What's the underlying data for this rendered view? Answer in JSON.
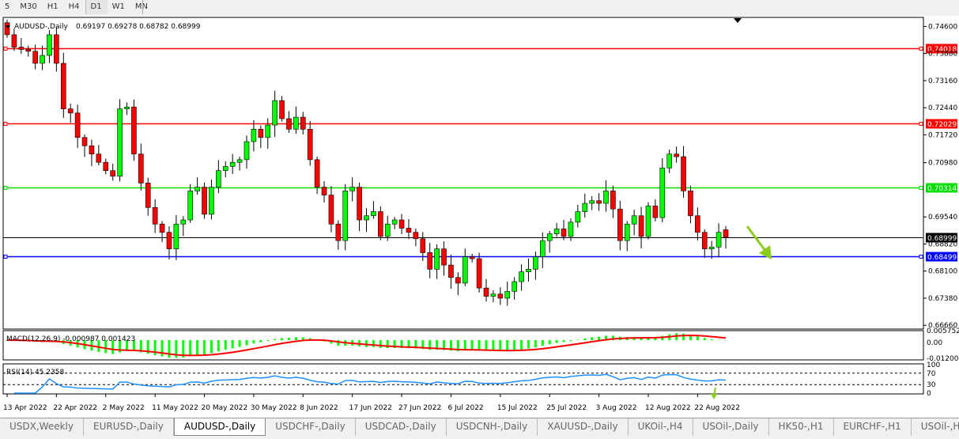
{
  "timeframes": [
    "5",
    "M30",
    "H1",
    "H4",
    "D1",
    "W1",
    "MN"
  ],
  "active_timeframe": "D1",
  "chart": {
    "symbol_label": "AUDUSD-,Daily",
    "ohlc": "0.69197 0.69278 0.68782 0.68999",
    "open": 0.69197,
    "high": 0.69278,
    "low": 0.68782,
    "close": 0.68999
  },
  "price_axis": {
    "min": 0.6656,
    "max": 0.7484,
    "ticks": [
      "0.74600",
      "0.73880",
      "0.73160",
      "0.72440",
      "0.71720",
      "0.70980",
      "0.69540",
      "0.68820",
      "0.68100",
      "0.67380",
      "0.66660"
    ]
  },
  "levels": [
    {
      "price": 0.74018,
      "label": "0.74018",
      "color": "#ff0000"
    },
    {
      "price": 0.72029,
      "label": "0.72029",
      "color": "#ff0000"
    },
    {
      "price": 0.70314,
      "label": "0.70314",
      "color": "#00e000"
    },
    {
      "price": 0.68999,
      "label": "0.68999",
      "color": "#000000"
    },
    {
      "price": 0.68499,
      "label": "0.68499",
      "color": "#0000ff"
    }
  ],
  "colors": {
    "bull": "#00ff00",
    "bear": "#ff0000",
    "macd_hist": "#00ff00",
    "macd_signal": "#ff0000",
    "rsi": "#1e90ff",
    "arrow": "#8ccc1a"
  },
  "closes": [
    0.7438,
    0.7405,
    0.7399,
    0.7394,
    0.7362,
    0.7383,
    0.7438,
    0.7362,
    0.7241,
    0.723,
    0.7165,
    0.7143,
    0.7121,
    0.7099,
    0.7077,
    0.7062,
    0.7241,
    0.7246,
    0.7121,
    0.7044,
    0.6979,
    0.6935,
    0.6913,
    0.6869,
    0.6935,
    0.6946,
    0.7023,
    0.7033,
    0.6961,
    0.7033,
    0.7077,
    0.7088,
    0.7099,
    0.7106,
    0.7154,
    0.7187,
    0.7165,
    0.7198,
    0.7263,
    0.7215,
    0.7187,
    0.7219,
    0.7187,
    0.7106,
    0.7033,
    0.7012,
    0.6935,
    0.6891,
    0.7023,
    0.7033,
    0.6946,
    0.6957,
    0.6968,
    0.6902,
    0.6935,
    0.6946,
    0.6924,
    0.6913,
    0.6896,
    0.6859,
    0.6815,
    0.6869,
    0.6826,
    0.6793,
    0.6778,
    0.6848,
    0.6843,
    0.6765,
    0.6743,
    0.6749,
    0.6738,
    0.6756,
    0.6782,
    0.6808,
    0.6815,
    0.6848,
    0.6891,
    0.6909,
    0.6922,
    0.6902,
    0.694,
    0.6968,
    0.699,
    0.6997,
    0.699,
    0.7023,
    0.6975,
    0.6891,
    0.6935,
    0.6957,
    0.6902,
    0.6983,
    0.6952,
    0.7084,
    0.7121,
    0.7114,
    0.7023,
    0.6957,
    0.6913,
    0.6869,
    0.6874,
    0.6913,
    0.68999
  ],
  "macd": {
    "label": "MACD(12,26,9) -0.000987 0.001423",
    "axis": [
      "0.005752",
      "0.00",
      "-0.012005"
    ]
  },
  "rsi": {
    "label": "RSI(14) 45.2358",
    "axis": [
      "100",
      "70",
      "30",
      "0"
    ]
  },
  "dates": [
    "13 Apr 2022",
    "22 Apr 2022",
    "2 May 2022",
    "11 May 2022",
    "20 May 2022",
    "30 May 2022",
    "8 Jun 2022",
    "17 Jun 2022",
    "27 Jun 2022",
    "6 Jul 2022",
    "15 Jul 2022",
    "25 Jul 2022",
    "3 Aug 2022",
    "12 Aug 2022",
    "22 Aug 2022"
  ],
  "tabs": [
    "USDX,Weekly",
    "EURUSD-,Daily",
    "AUDUSD-,Daily",
    "USDCHF-,Daily",
    "USDCAD-,Daily",
    "USDCNH-,Daily",
    "XAUUSD-,Daily",
    "UKOil-,H4",
    "USOil-,Daily",
    "HK50-,H1",
    "EURCHF-,H1",
    "USOil-,H4"
  ],
  "active_tab": "AUDUSD-,Daily"
}
